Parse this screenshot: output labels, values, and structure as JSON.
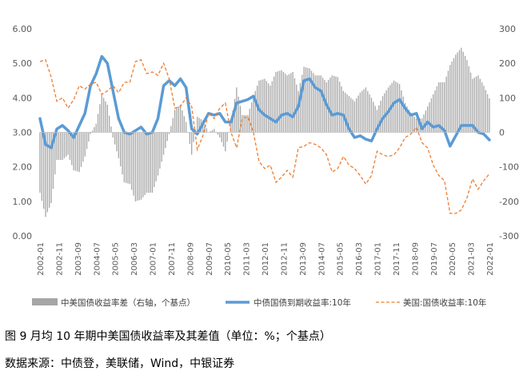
{
  "chart_data": {
    "type": "bar+line",
    "left_axis": {
      "min": 0,
      "max": 6,
      "step": 1,
      "ticks": [
        "0.00",
        "1.00",
        "2.00",
        "3.00",
        "4.00",
        "5.00",
        "6.00"
      ]
    },
    "right_axis": {
      "min": -300,
      "max": 300,
      "step": 100,
      "ticks": [
        "-300",
        "-200",
        "-100",
        "0",
        "100",
        "200",
        "300"
      ]
    },
    "x_range": [
      "2002-01",
      "2022-01"
    ],
    "x_tick_labels": [
      "2002-01",
      "2002-11",
      "2003-09",
      "2004-07",
      "2005-05",
      "2006-03",
      "2007-01",
      "2007-11",
      "2008-09",
      "2009-07",
      "2010-05",
      "2011-03",
      "2012-01",
      "2012-11",
      "2013-09",
      "2014-07",
      "2015-05",
      "2016-03",
      "2017-01",
      "2017-11",
      "2018-09",
      "2019-07",
      "2020-05",
      "2021-03",
      "2022-01"
    ],
    "series": [
      {
        "name": "中美国债收益率差（右轴，个基点）",
        "kind": "bar",
        "axis": "right",
        "color": "#a6a6a6"
      },
      {
        "name": "中债国债到期收益率:10年",
        "kind": "line",
        "axis": "left",
        "color": "#5b9bd5"
      },
      {
        "name": "美国:国债收益率:10年",
        "kind": "dashed-line",
        "axis": "left",
        "color": "#ed7d31"
      }
    ],
    "x": [
      "2002-01",
      "2002-04",
      "2002-07",
      "2002-10",
      "2003-01",
      "2003-04",
      "2003-07",
      "2003-10",
      "2004-01",
      "2004-04",
      "2004-07",
      "2004-10",
      "2005-01",
      "2005-04",
      "2005-07",
      "2005-10",
      "2006-01",
      "2006-04",
      "2006-07",
      "2006-10",
      "2007-01",
      "2007-04",
      "2007-07",
      "2007-10",
      "2008-01",
      "2008-04",
      "2008-07",
      "2008-10",
      "2009-01",
      "2009-04",
      "2009-07",
      "2009-10",
      "2010-01",
      "2010-04",
      "2010-07",
      "2010-10",
      "2011-01",
      "2011-04",
      "2011-07",
      "2011-10",
      "2012-01",
      "2012-04",
      "2012-07",
      "2012-10",
      "2013-01",
      "2013-04",
      "2013-07",
      "2013-10",
      "2014-01",
      "2014-04",
      "2014-07",
      "2014-10",
      "2015-01",
      "2015-04",
      "2015-07",
      "2015-10",
      "2016-01",
      "2016-04",
      "2016-07",
      "2016-10",
      "2017-01",
      "2017-04",
      "2017-07",
      "2017-10",
      "2018-01",
      "2018-04",
      "2018-07",
      "2018-10",
      "2019-01",
      "2019-04",
      "2019-07",
      "2019-10",
      "2020-01",
      "2020-04",
      "2020-07",
      "2020-10",
      "2021-01",
      "2021-04",
      "2021-07",
      "2021-10",
      "2022-01"
    ],
    "cn10y": [
      3.4,
      2.65,
      2.55,
      3.1,
      3.2,
      3.05,
      2.85,
      3.2,
      3.55,
      4.35,
      4.7,
      5.2,
      5.0,
      4.2,
      3.4,
      3.0,
      2.95,
      3.05,
      3.15,
      2.95,
      3.0,
      3.4,
      4.35,
      4.5,
      4.35,
      4.55,
      4.3,
      3.1,
      2.95,
      3.25,
      3.55,
      3.5,
      3.55,
      3.3,
      3.3,
      3.85,
      3.9,
      3.95,
      4.05,
      3.65,
      3.5,
      3.4,
      3.3,
      3.5,
      3.55,
      3.45,
      3.75,
      4.5,
      4.55,
      4.3,
      4.2,
      3.8,
      3.5,
      3.55,
      3.5,
      3.1,
      2.85,
      2.9,
      2.8,
      2.75,
      3.1,
      3.4,
      3.6,
      3.85,
      3.95,
      3.7,
      3.5,
      3.55,
      3.1,
      3.3,
      3.15,
      3.2,
      3.05,
      2.6,
      2.9,
      3.2,
      3.2,
      3.2,
      3.0,
      2.95,
      2.78
    ],
    "us10y": [
      5.05,
      5.1,
      4.6,
      3.9,
      4.0,
      3.7,
      3.95,
      4.35,
      4.25,
      4.4,
      4.45,
      4.1,
      4.2,
      4.35,
      4.15,
      4.45,
      4.45,
      5.05,
      5.1,
      4.7,
      4.75,
      4.65,
      5.0,
      4.55,
      3.7,
      3.75,
      4.0,
      3.75,
      2.5,
      2.9,
      3.55,
      3.4,
      3.7,
      3.85,
      3.0,
      2.55,
      3.4,
      3.45,
      3.0,
      2.15,
      1.95,
      2.05,
      1.55,
      1.7,
      1.9,
      1.7,
      2.55,
      2.6,
      2.7,
      2.65,
      2.55,
      2.35,
      1.85,
      1.95,
      2.3,
      2.05,
      1.95,
      1.75,
      1.5,
      1.75,
      2.45,
      2.35,
      2.3,
      2.35,
      2.55,
      2.85,
      2.95,
      3.15,
      2.7,
      2.55,
      2.05,
      1.75,
      1.6,
      0.65,
      0.65,
      0.75,
      1.1,
      1.65,
      1.35,
      1.6,
      1.8
    ],
    "spread_bp": [
      -175,
      -245,
      -205,
      -80,
      -80,
      -65,
      -110,
      -115,
      -70,
      -5,
      25,
      110,
      80,
      -15,
      -75,
      -145,
      -150,
      -200,
      -195,
      -175,
      -175,
      -125,
      -65,
      -5,
      65,
      80,
      30,
      -65,
      45,
      35,
      0,
      10,
      -15,
      -55,
      30,
      130,
      50,
      50,
      105,
      150,
      155,
      135,
      175,
      180,
      165,
      175,
      120,
      190,
      185,
      165,
      165,
      145,
      165,
      160,
      120,
      105,
      90,
      115,
      130,
      100,
      65,
      105,
      130,
      150,
      140,
      85,
      55,
      40,
      40,
      75,
      110,
      145,
      145,
      195,
      225,
      245,
      210,
      155,
      165,
      135,
      98
    ]
  },
  "legend": {
    "spread": "中美国债收益率差（右轴，个基点）",
    "cn": "中债国债到期收益率:10年",
    "us": "美国:国债收益率:10年"
  },
  "caption": {
    "figure_title": "图 9  月均 10 年期中美国债收益率及其差值（单位：%；个基点）",
    "source": "数据来源：中债登，美联储，Wind，中银证券"
  }
}
